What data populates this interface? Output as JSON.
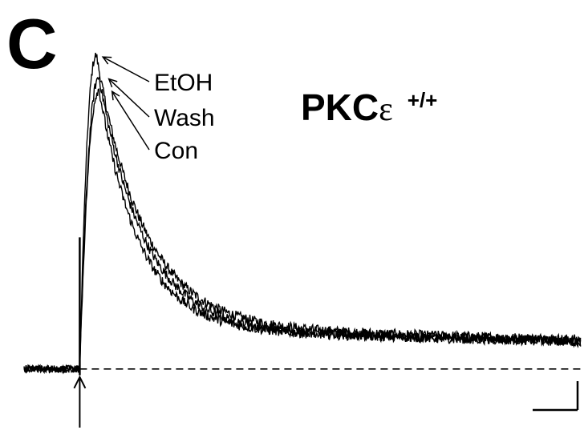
{
  "panel_label": "C",
  "title": {
    "main": "PKC",
    "greek": "ε",
    "superscript": "+/+"
  },
  "chart_data": {
    "type": "line",
    "title": "PKCε +/+",
    "xlabel": "",
    "ylabel": "",
    "xlim": [
      0,
      100
    ],
    "ylim": [
      -0.1,
      1.1
    ],
    "baseline_dashed": true,
    "stimulus_marker_x": 10,
    "scale_bar": true,
    "legend_position": "top-left, arrows pointing to peaks",
    "series": [
      {
        "name": "EtOH",
        "peak": 1.0,
        "peak_x": 13,
        "tau": 8.5,
        "slow": 0.14,
        "tau_slow": 220,
        "color": "#000000"
      },
      {
        "name": "Wash",
        "peak": 0.93,
        "peak_x": 13.5,
        "tau": 8.0,
        "slow": 0.13,
        "tau_slow": 220,
        "color": "#000000"
      },
      {
        "name": "Con",
        "peak": 0.89,
        "peak_x": 13.5,
        "tau": 7.2,
        "slow": 0.13,
        "tau_slow": 220,
        "color": "#000000"
      }
    ]
  }
}
